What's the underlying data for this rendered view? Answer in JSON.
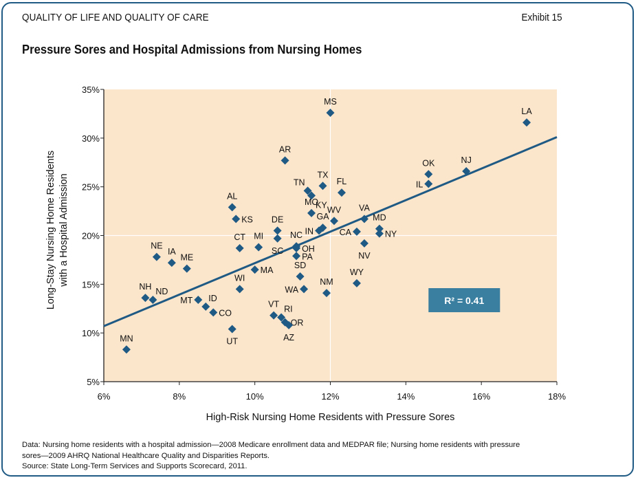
{
  "header": {
    "section": "QUALITY OF LIFE AND QUALITY OF CARE",
    "exhibit": "Exhibit 15",
    "title": "Pressure Sores and Hospital Admissions from Nursing Homes"
  },
  "footnote": {
    "line1": "Data: Nursing home residents with a hospital admission—2008 Medicare enrollment data and MEDPAR file;  Nursing home residents with pressure",
    "line2": "sores—2009 AHRQ National Healthcare Quality and Disparities Reports.",
    "line3": "Source: State Long-Term Services and Supports Scorecard, 2011."
  },
  "colors": {
    "plot_background": "#fbe5cb",
    "marker": "#1f5a85",
    "trendline": "#1f5a85",
    "r2_box": "#3a7fa0",
    "frame": "#1f5a85",
    "reference_lines": "#ffffff"
  },
  "chart_data": {
    "type": "scatter",
    "title": "Pressure Sores and Hospital Admissions from Nursing Homes",
    "xlabel": "High-Risk Nursing Home Residents with Pressure Sores",
    "ylabel_lines": [
      "Long-Stay Nursing Home Residents",
      "with a Hospital Admission"
    ],
    "xlim": [
      6,
      18
    ],
    "ylim": [
      5,
      35
    ],
    "x_ticks": [
      6,
      8,
      10,
      12,
      14,
      16,
      18
    ],
    "x_tick_labels": [
      "6%",
      "8%",
      "10%",
      "12%",
      "14%",
      "16%",
      "18%"
    ],
    "y_ticks": [
      5,
      10,
      15,
      20,
      25,
      30,
      35
    ],
    "y_tick_labels": [
      "5%",
      "10%",
      "15%",
      "20%",
      "25%",
      "30%",
      "35%"
    ],
    "grid": false,
    "reference_lines": {
      "x": 12,
      "y": 20
    },
    "trendline": {
      "x": [
        6,
        18
      ],
      "y": [
        10.7,
        30.1
      ]
    },
    "annotation": "R² = 0.41",
    "annotation_position": {
      "x": 14.6,
      "y": 13.4
    },
    "points": [
      {
        "label": "MS",
        "x": 12.0,
        "y": 32.6,
        "pos": "top"
      },
      {
        "label": "LA",
        "x": 17.2,
        "y": 31.6,
        "pos": "top"
      },
      {
        "label": "AR",
        "x": 10.8,
        "y": 27.7,
        "pos": "top"
      },
      {
        "label": "NJ",
        "x": 15.6,
        "y": 26.6,
        "pos": "top"
      },
      {
        "label": "OK",
        "x": 14.6,
        "y": 26.3,
        "pos": "top"
      },
      {
        "label": "IL",
        "x": 14.6,
        "y": 25.3,
        "pos": "left"
      },
      {
        "label": "TX",
        "x": 11.8,
        "y": 25.1,
        "pos": "top"
      },
      {
        "label": "TN",
        "x": 11.4,
        "y": 24.6,
        "pos": "topleft"
      },
      {
        "label": "FL",
        "x": 12.3,
        "y": 24.4,
        "pos": "top"
      },
      {
        "label": "KY",
        "x": 11.5,
        "y": 24.1,
        "pos": "bottomright"
      },
      {
        "label": "AL",
        "x": 9.4,
        "y": 22.9,
        "pos": "top"
      },
      {
        "label": "MO",
        "x": 11.5,
        "y": 22.3,
        "pos": "top"
      },
      {
        "label": "VA",
        "x": 12.9,
        "y": 21.7,
        "pos": "top"
      },
      {
        "label": "KS",
        "x": 9.5,
        "y": 21.7,
        "pos": "right"
      },
      {
        "label": "WV",
        "x": 12.1,
        "y": 21.5,
        "pos": "top"
      },
      {
        "label": "GA",
        "x": 11.8,
        "y": 20.8,
        "pos": "top"
      },
      {
        "label": "MD",
        "x": 13.3,
        "y": 20.7,
        "pos": "top"
      },
      {
        "label": "IN",
        "x": 11.7,
        "y": 20.5,
        "pos": "left"
      },
      {
        "label": "DE",
        "x": 10.6,
        "y": 20.5,
        "pos": "top"
      },
      {
        "label": "CA",
        "x": 12.7,
        "y": 20.4,
        "pos": "left"
      },
      {
        "label": "NY",
        "x": 13.3,
        "y": 20.2,
        "pos": "right"
      },
      {
        "label": "SC",
        "x": 10.6,
        "y": 19.7,
        "pos": "bottom"
      },
      {
        "label": "NV",
        "x": 12.9,
        "y": 19.2,
        "pos": "bottom"
      },
      {
        "label": "NC",
        "x": 11.1,
        "y": 18.9,
        "pos": "top"
      },
      {
        "label": "MI",
        "x": 10.1,
        "y": 18.8,
        "pos": "top"
      },
      {
        "label": "CT",
        "x": 9.6,
        "y": 18.7,
        "pos": "top"
      },
      {
        "label": "OH",
        "x": 11.1,
        "y": 18.7,
        "pos": "right"
      },
      {
        "label": "PA",
        "x": 11.1,
        "y": 17.9,
        "pos": "right"
      },
      {
        "label": "NE",
        "x": 7.4,
        "y": 17.8,
        "pos": "top"
      },
      {
        "label": "IA",
        "x": 7.8,
        "y": 17.2,
        "pos": "top"
      },
      {
        "label": "ME",
        "x": 8.2,
        "y": 16.6,
        "pos": "top"
      },
      {
        "label": "MA",
        "x": 10.0,
        "y": 16.5,
        "pos": "right"
      },
      {
        "label": "SD",
        "x": 11.2,
        "y": 15.8,
        "pos": "top"
      },
      {
        "label": "WY",
        "x": 12.7,
        "y": 15.1,
        "pos": "top"
      },
      {
        "label": "WI",
        "x": 9.6,
        "y": 14.5,
        "pos": "top"
      },
      {
        "label": "WA",
        "x": 11.3,
        "y": 14.5,
        "pos": "left"
      },
      {
        "label": "NM",
        "x": 11.9,
        "y": 14.1,
        "pos": "top"
      },
      {
        "label": "NH",
        "x": 7.1,
        "y": 13.6,
        "pos": "top"
      },
      {
        "label": "ND",
        "x": 7.3,
        "y": 13.4,
        "pos": "topright"
      },
      {
        "label": "MT",
        "x": 8.5,
        "y": 13.4,
        "pos": "left"
      },
      {
        "label": "ID",
        "x": 8.7,
        "y": 12.7,
        "pos": "topright"
      },
      {
        "label": "CO",
        "x": 8.9,
        "y": 12.1,
        "pos": "right"
      },
      {
        "label": "VT",
        "x": 10.5,
        "y": 11.8,
        "pos": "top"
      },
      {
        "label": "RI",
        "x": 10.7,
        "y": 11.6,
        "pos": "topright"
      },
      {
        "label": "OR",
        "x": 10.8,
        "y": 11.1,
        "pos": "right"
      },
      {
        "label": "AZ",
        "x": 10.9,
        "y": 10.8,
        "pos": "bottom"
      },
      {
        "label": "UT",
        "x": 9.4,
        "y": 10.4,
        "pos": "bottom"
      },
      {
        "label": "MN",
        "x": 6.6,
        "y": 8.3,
        "pos": "top"
      }
    ]
  }
}
